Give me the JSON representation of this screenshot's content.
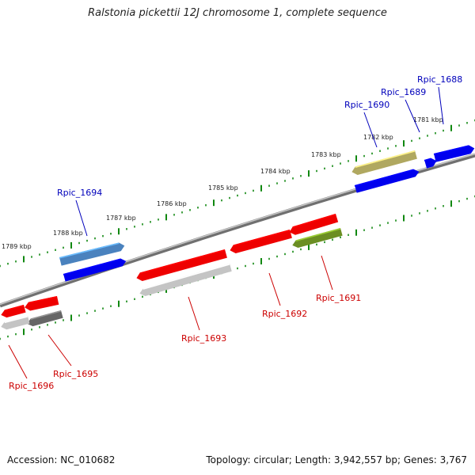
{
  "title": "Ralstonia pickettii 12J chromosome 1, complete sequence",
  "footer": {
    "accession": "Accession: NC_010682",
    "topology": "Topology: circular; Length: 3,942,557 bp; Genes: 3,767"
  },
  "colors": {
    "forward_label": "#0000bb",
    "reverse_label": "#cc0000",
    "tick": "#118811",
    "backbone": "#808080"
  },
  "kbp_labels": [
    "1781 kbp",
    "1782 kbp",
    "1783 kbp",
    "1784 kbp",
    "1785 kbp",
    "1786 kbp",
    "1787 kbp",
    "1788 kbp",
    "1789 kbp"
  ],
  "genes": [
    {
      "name": "Rpic_1688",
      "strand": "forward",
      "color": "#0000ee"
    },
    {
      "name": "Rpic_1689",
      "strand": "forward",
      "color": "#0000ee"
    },
    {
      "name": "Rpic_1690",
      "strand": "forward",
      "color": "#b0a860"
    },
    {
      "name": "Rpic_1691",
      "strand": "reverse",
      "color": "#6b8e23"
    },
    {
      "name": "Rpic_1692",
      "strand": "reverse",
      "color": "#ee0000"
    },
    {
      "name": "Rpic_1693",
      "strand": "reverse",
      "color": "#ee0000"
    },
    {
      "name": "Rpic_1694",
      "strand": "forward",
      "color": "#4a82be"
    },
    {
      "name": "Rpic_1695",
      "strand": "reverse",
      "color": "#666666"
    },
    {
      "name": "Rpic_1696",
      "strand": "reverse",
      "color": "#ee0000"
    }
  ]
}
